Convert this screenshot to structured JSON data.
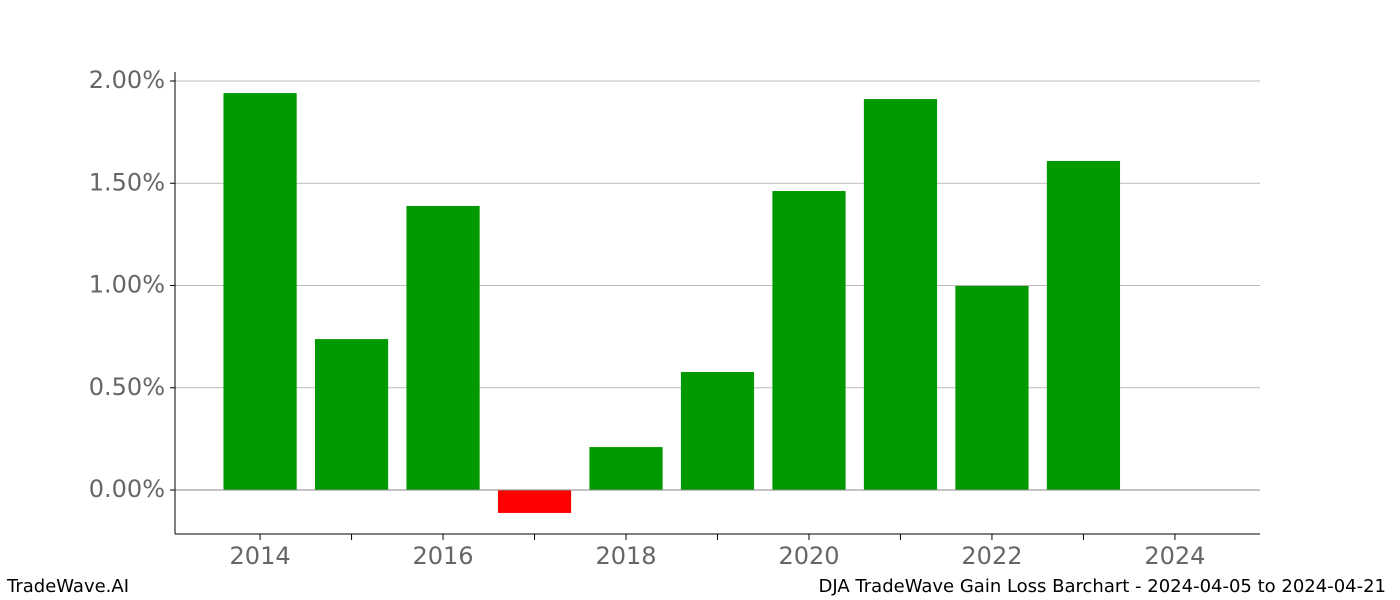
{
  "chart_data": {
    "type": "bar",
    "x": [
      2014,
      2015,
      2016,
      2017,
      2018,
      2019,
      2020,
      2021,
      2022,
      2023
    ],
    "values": [
      1.941,
      0.738,
      1.389,
      -0.112,
      0.21,
      0.577,
      1.462,
      1.912,
      0.998,
      1.609
    ],
    "positive_color": "#009900",
    "negative_color": "#ff0000",
    "xlim": [
      2013.07,
      2024.93
    ],
    "xticks": [
      2014,
      2016,
      2018,
      2020,
      2022,
      2024
    ],
    "xminorticks": [
      2015,
      2017,
      2019,
      2021,
      2023
    ],
    "ylim": [
      -0.215,
      2.044
    ],
    "yticks": [
      {
        "value": 0,
        "label": "0.00%"
      },
      {
        "value": 0.5,
        "label": "0.50%"
      },
      {
        "value": 1,
        "label": "1.00%"
      },
      {
        "value": 1.5,
        "label": "1.50%"
      },
      {
        "value": 2,
        "label": "2.00%"
      }
    ],
    "grid": true,
    "footer_left": "TradeWave.AI",
    "footer_right": "DJA TradeWave Gain Loss Barchart - 2024-04-05 to 2024-04-21"
  }
}
